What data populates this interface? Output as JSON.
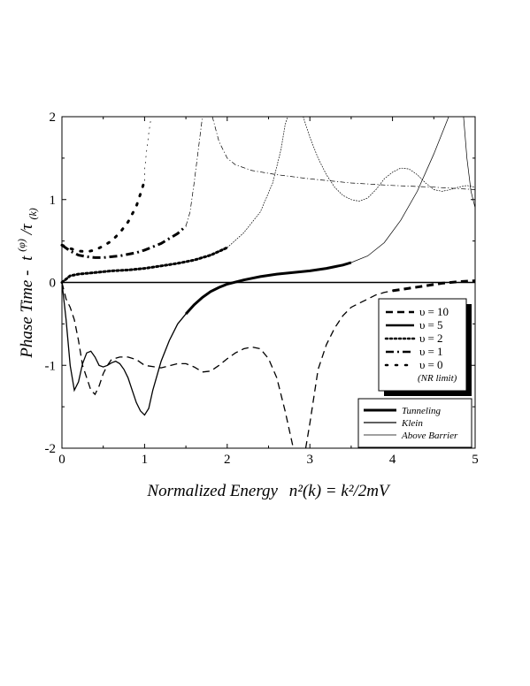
{
  "chart_data": {
    "type": "line",
    "title": "",
    "xlabel": "Normalized Energy n²(k) = k²/2mV",
    "xlabel_parts": {
      "main": "Normalized Energy",
      "formula": "n²(k) = k²/2mV"
    },
    "ylabel": "Phase Time - t(φ)/τ(k)",
    "ylabel_parts": {
      "main": "Phase Time  -",
      "sym": "t",
      "sup": "(φ)",
      "slash": "/τ",
      "sub": "(k)"
    },
    "xlim": [
      0,
      5
    ],
    "ylim": [
      -2,
      2
    ],
    "xticks": [
      "0",
      "1",
      "2",
      "3",
      "4",
      "5"
    ],
    "yticks": [
      "-2",
      "-1",
      "0",
      "1",
      "2"
    ],
    "grid": false,
    "zero_line": true,
    "legend_v": {
      "placement": "right-middle",
      "entries": [
        {
          "symbol": "υ",
          "label": "= 10",
          "dash": "dash"
        },
        {
          "symbol": "υ",
          "label": "= 5",
          "dash": "solid"
        },
        {
          "symbol": "υ",
          "label": "= 2",
          "dash": "dot"
        },
        {
          "symbol": "υ",
          "label": "= 1",
          "dash": "dashdot"
        },
        {
          "symbol": "υ",
          "label": "= 0",
          "dash": "sparse-dot"
        }
      ],
      "note": "(NR limit)"
    },
    "legend_regime": {
      "placement": "bottom-right",
      "entries": [
        {
          "label": "Tunneling",
          "weight": "thick"
        },
        {
          "label": "Klein",
          "weight": "medium"
        },
        {
          "label": "Above Barrier",
          "weight": "thin"
        }
      ]
    },
    "series": [
      {
        "label": "υ = 0",
        "dash": "sparse-dot",
        "segments": [
          {
            "regime": "tunneling",
            "points": [
              [
                0.0,
                0.45
              ],
              [
                0.1,
                0.41
              ],
              [
                0.2,
                0.38
              ],
              [
                0.3,
                0.37
              ],
              [
                0.4,
                0.39
              ],
              [
                0.5,
                0.44
              ],
              [
                0.6,
                0.5
              ],
              [
                0.7,
                0.6
              ],
              [
                0.8,
                0.73
              ],
              [
                0.9,
                0.92
              ],
              [
                0.96,
                1.1
              ],
              [
                1.0,
                1.23
              ]
            ]
          },
          {
            "regime": "above",
            "points": [
              [
                1.0,
                1.23
              ],
              [
                1.0,
                1.35
              ],
              [
                1.02,
                1.55
              ],
              [
                1.05,
                1.8
              ],
              [
                1.08,
                2.0
              ]
            ]
          }
        ]
      },
      {
        "label": "υ = 1",
        "dash": "dashdot",
        "segments": [
          {
            "regime": "tunneling",
            "points": [
              [
                0.0,
                0.45
              ],
              [
                0.1,
                0.38
              ],
              [
                0.2,
                0.33
              ],
              [
                0.3,
                0.31
              ],
              [
                0.4,
                0.3
              ],
              [
                0.5,
                0.3
              ],
              [
                0.6,
                0.31
              ],
              [
                0.7,
                0.32
              ],
              [
                0.8,
                0.34
              ],
              [
                0.9,
                0.36
              ],
              [
                1.0,
                0.39
              ],
              [
                1.1,
                0.43
              ],
              [
                1.2,
                0.47
              ],
              [
                1.3,
                0.53
              ],
              [
                1.4,
                0.59
              ],
              [
                1.5,
                0.68
              ]
            ]
          },
          {
            "regime": "above",
            "points": [
              [
                1.5,
                0.68
              ],
              [
                1.55,
                0.85
              ],
              [
                1.6,
                1.2
              ],
              [
                1.65,
                1.6
              ],
              [
                1.7,
                2.0
              ]
            ]
          },
          {
            "regime": "above",
            "points": [
              [
                1.82,
                2.0
              ],
              [
                1.9,
                1.7
              ],
              [
                2.0,
                1.5
              ],
              [
                2.1,
                1.42
              ],
              [
                2.3,
                1.35
              ],
              [
                2.6,
                1.3
              ],
              [
                3.0,
                1.25
              ],
              [
                3.5,
                1.2
              ],
              [
                4.0,
                1.17
              ],
              [
                4.5,
                1.15
              ],
              [
                5.0,
                1.12
              ]
            ]
          }
        ]
      },
      {
        "label": "υ = 2",
        "dash": "dot",
        "segments": [
          {
            "regime": "tunneling",
            "points": [
              [
                0.0,
                0.0
              ],
              [
                0.1,
                0.08
              ],
              [
                0.2,
                0.1
              ],
              [
                0.4,
                0.12
              ],
              [
                0.6,
                0.14
              ],
              [
                0.8,
                0.15
              ],
              [
                1.0,
                0.17
              ],
              [
                1.2,
                0.2
              ],
              [
                1.4,
                0.23
              ],
              [
                1.6,
                0.27
              ],
              [
                1.8,
                0.33
              ],
              [
                2.0,
                0.42
              ]
            ]
          },
          {
            "regime": "above",
            "points": [
              [
                2.0,
                0.42
              ],
              [
                2.2,
                0.6
              ],
              [
                2.4,
                0.85
              ],
              [
                2.55,
                1.2
              ],
              [
                2.65,
                1.6
              ],
              [
                2.7,
                1.9
              ],
              [
                2.73,
                2.0
              ]
            ]
          },
          {
            "regime": "above",
            "points": [
              [
                2.92,
                2.0
              ],
              [
                3.0,
                1.75
              ],
              [
                3.1,
                1.5
              ],
              [
                3.2,
                1.3
              ],
              [
                3.3,
                1.15
              ],
              [
                3.4,
                1.05
              ],
              [
                3.5,
                1.0
              ],
              [
                3.6,
                0.98
              ],
              [
                3.7,
                1.02
              ],
              [
                3.8,
                1.12
              ],
              [
                3.9,
                1.25
              ],
              [
                4.0,
                1.33
              ],
              [
                4.1,
                1.38
              ],
              [
                4.2,
                1.37
              ],
              [
                4.3,
                1.3
              ],
              [
                4.4,
                1.2
              ],
              [
                4.5,
                1.12
              ],
              [
                4.6,
                1.1
              ],
              [
                4.7,
                1.12
              ],
              [
                4.8,
                1.15
              ],
              [
                4.9,
                1.17
              ],
              [
                5.0,
                1.15
              ]
            ]
          }
        ]
      },
      {
        "label": "υ = 5",
        "dash": "solid",
        "segments": [
          {
            "regime": "klein",
            "points": [
              [
                0.0,
                0.0
              ],
              [
                0.05,
                -0.45
              ],
              [
                0.1,
                -1.0
              ],
              [
                0.15,
                -1.3
              ],
              [
                0.2,
                -1.2
              ],
              [
                0.25,
                -0.98
              ],
              [
                0.3,
                -0.85
              ],
              [
                0.35,
                -0.83
              ],
              [
                0.4,
                -0.9
              ],
              [
                0.45,
                -1.0
              ],
              [
                0.5,
                -1.02
              ],
              [
                0.55,
                -1.0
              ],
              [
                0.6,
                -0.97
              ],
              [
                0.65,
                -0.95
              ],
              [
                0.7,
                -0.98
              ],
              [
                0.75,
                -1.05
              ],
              [
                0.8,
                -1.15
              ],
              [
                0.85,
                -1.3
              ],
              [
                0.9,
                -1.45
              ],
              [
                0.95,
                -1.55
              ],
              [
                1.0,
                -1.6
              ],
              [
                1.05,
                -1.52
              ],
              [
                1.1,
                -1.3
              ],
              [
                1.2,
                -0.95
              ],
              [
                1.3,
                -0.7
              ],
              [
                1.4,
                -0.5
              ],
              [
                1.5,
                -0.38
              ]
            ]
          },
          {
            "regime": "tunneling",
            "points": [
              [
                1.5,
                -0.38
              ],
              [
                1.6,
                -0.27
              ],
              [
                1.7,
                -0.18
              ],
              [
                1.8,
                -0.11
              ],
              [
                1.9,
                -0.06
              ],
              [
                2.0,
                -0.02
              ],
              [
                2.2,
                0.03
              ],
              [
                2.4,
                0.07
              ],
              [
                2.6,
                0.1
              ],
              [
                2.8,
                0.12
              ],
              [
                3.0,
                0.14
              ],
              [
                3.2,
                0.17
              ],
              [
                3.4,
                0.21
              ],
              [
                3.5,
                0.24
              ]
            ]
          },
          {
            "regime": "above",
            "points": [
              [
                3.5,
                0.24
              ],
              [
                3.7,
                0.32
              ],
              [
                3.9,
                0.48
              ],
              [
                4.1,
                0.75
              ],
              [
                4.3,
                1.1
              ],
              [
                4.5,
                1.55
              ],
              [
                4.62,
                1.85
              ],
              [
                4.68,
                2.0
              ]
            ]
          },
          {
            "regime": "above",
            "points": [
              [
                4.86,
                2.0
              ],
              [
                4.9,
                1.5
              ],
              [
                4.95,
                1.1
              ],
              [
                5.0,
                0.9
              ]
            ]
          }
        ]
      },
      {
        "label": "υ = 10",
        "dash": "dash",
        "segments": [
          {
            "regime": "klein",
            "points": [
              [
                0.0,
                0.0
              ],
              [
                0.05,
                -0.2
              ],
              [
                0.1,
                -0.3
              ],
              [
                0.15,
                -0.45
              ],
              [
                0.2,
                -0.7
              ],
              [
                0.25,
                -1.0
              ],
              [
                0.3,
                -1.15
              ],
              [
                0.35,
                -1.3
              ],
              [
                0.4,
                -1.35
              ],
              [
                0.45,
                -1.25
              ],
              [
                0.5,
                -1.1
              ],
              [
                0.55,
                -1.0
              ],
              [
                0.6,
                -0.93
              ],
              [
                0.7,
                -0.9
              ],
              [
                0.8,
                -0.9
              ],
              [
                0.9,
                -0.93
              ],
              [
                1.0,
                -1.0
              ],
              [
                1.2,
                -1.03
              ],
              [
                1.4,
                -0.98
              ],
              [
                1.5,
                -0.98
              ],
              [
                1.6,
                -1.02
              ],
              [
                1.7,
                -1.08
              ],
              [
                1.8,
                -1.07
              ],
              [
                1.9,
                -1.0
              ],
              [
                2.0,
                -0.92
              ],
              [
                2.1,
                -0.85
              ],
              [
                2.2,
                -0.8
              ],
              [
                2.3,
                -0.78
              ],
              [
                2.4,
                -0.8
              ],
              [
                2.5,
                -0.92
              ],
              [
                2.6,
                -1.15
              ],
              [
                2.7,
                -1.55
              ],
              [
                2.8,
                -2.0
              ]
            ]
          },
          {
            "regime": "klein",
            "points": [
              [
                2.95,
                -2.0
              ],
              [
                3.0,
                -1.7
              ],
              [
                3.1,
                -1.05
              ],
              [
                3.2,
                -0.75
              ],
              [
                3.3,
                -0.55
              ],
              [
                3.4,
                -0.4
              ],
              [
                3.5,
                -0.3
              ],
              [
                3.6,
                -0.25
              ],
              [
                3.7,
                -0.2
              ],
              [
                3.8,
                -0.15
              ],
              [
                3.9,
                -0.12
              ],
              [
                4.0,
                -0.1
              ]
            ]
          },
          {
            "regime": "tunneling",
            "points": [
              [
                4.0,
                -0.1
              ],
              [
                4.2,
                -0.07
              ],
              [
                4.4,
                -0.04
              ],
              [
                4.6,
                -0.01
              ],
              [
                4.8,
                0.01
              ],
              [
                5.0,
                0.02
              ]
            ]
          }
        ]
      }
    ]
  }
}
